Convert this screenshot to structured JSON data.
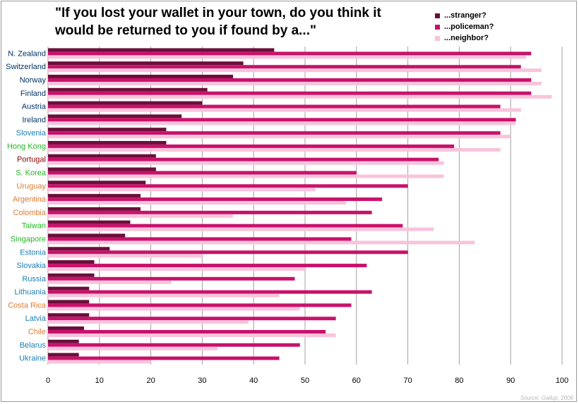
{
  "chart_data": {
    "type": "bar",
    "orientation": "horizontal",
    "title": "\"If you lost your wallet in your town, do you think it would be returned to you if found by a...\"",
    "source": "Source: Gallup, 2006",
    "categories": [
      "N. Zealand",
      "Switzerland",
      "Norway",
      "Finland",
      "Austria",
      "Ireland",
      "Slovenia",
      "Hong Kong",
      "Portugal",
      "S. Korea",
      "Uruguay",
      "Argentina",
      "Colombia",
      "Taiwan",
      "Singapore",
      "Estonia",
      "Slovakia",
      "Russia",
      "Lithuania",
      "Costa Rica",
      "Latvia",
      "Chile",
      "Belarus",
      "Ukraine"
    ],
    "category_colors": [
      "#003366",
      "#003366",
      "#003366",
      "#003366",
      "#003366",
      "#003366",
      "#1a7fb5",
      "#22b822",
      "#8b0000",
      "#22b822",
      "#e07a2e",
      "#e07a2e",
      "#e07a2e",
      "#22b822",
      "#22b822",
      "#1a7fb5",
      "#1a7fb5",
      "#1a7fb5",
      "#1a7fb5",
      "#e07a2e",
      "#1a7fb5",
      "#e07a2e",
      "#1a7fb5",
      "#1a7fb5"
    ],
    "series": [
      {
        "name": "...stranger?",
        "color": "#6b0f3a",
        "values": [
          44,
          38,
          36,
          31,
          30,
          26,
          23,
          23,
          21,
          21,
          19,
          18,
          18,
          16,
          15,
          12,
          9,
          9,
          8,
          8,
          8,
          7,
          6,
          6
        ]
      },
      {
        "name": "...policeman?",
        "color": "#c8126b",
        "values": [
          94,
          92,
          94,
          94,
          88,
          91,
          88,
          79,
          76,
          60,
          70,
          65,
          63,
          69,
          59,
          70,
          62,
          48,
          63,
          59,
          56,
          54,
          49,
          45
        ]
      },
      {
        "name": "...neighbor?",
        "color": "#f9c3dc",
        "values": [
          93,
          96,
          96,
          98,
          92,
          91,
          90,
          88,
          77,
          77,
          52,
          58,
          36,
          75,
          83,
          30,
          50,
          24,
          45,
          49,
          39,
          56,
          33,
          20
        ]
      }
    ],
    "x_ticks": [
      0,
      10,
      20,
      30,
      40,
      50,
      60,
      70,
      80,
      90,
      100
    ],
    "xlim": [
      0,
      100
    ],
    "grid": true,
    "legend_position": "top-right"
  }
}
